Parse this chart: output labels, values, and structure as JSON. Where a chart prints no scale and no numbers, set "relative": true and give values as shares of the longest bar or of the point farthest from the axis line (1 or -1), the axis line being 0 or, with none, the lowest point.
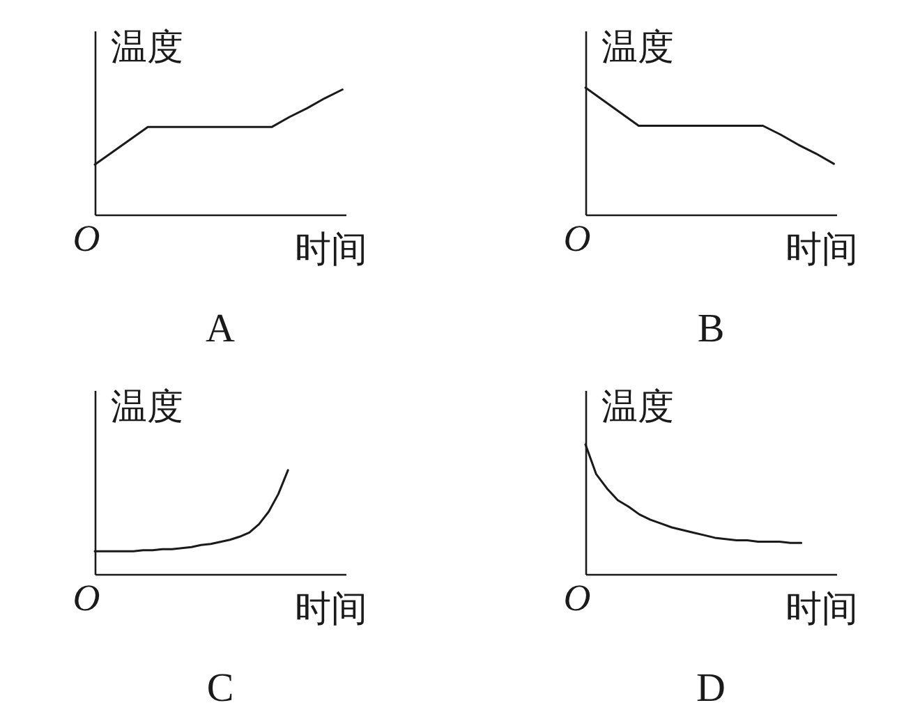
{
  "chart_data": [
    {
      "type": "line",
      "relative": true,
      "title": "A",
      "xlabel": "时间",
      "ylabel": "温度",
      "annotations": [
        "O"
      ],
      "categories": [
        null,
        null,
        null,
        null,
        null,
        null,
        null,
        null,
        null,
        null,
        null,
        null,
        null,
        null,
        null
      ],
      "series": [
        {
          "color": "#1a1a1a",
          "values": [
            0.4,
            0.5,
            0.6,
            0.7,
            0.7,
            0.7,
            0.7,
            0.7,
            0.7,
            0.7,
            0.7,
            0.78,
            0.85,
            0.93,
            1.0
          ]
        }
      ]
    },
    {
      "type": "line",
      "relative": true,
      "title": "B",
      "xlabel": "时间",
      "ylabel": "温度",
      "annotations": [
        "O"
      ],
      "categories": [
        null,
        null,
        null,
        null,
        null,
        null,
        null,
        null,
        null,
        null,
        null,
        null,
        null,
        null,
        null
      ],
      "series": [
        {
          "color": "#1a1a1a",
          "values": [
            1.0,
            0.9,
            0.8,
            0.7,
            0.7,
            0.7,
            0.7,
            0.7,
            0.7,
            0.7,
            0.7,
            0.63,
            0.55,
            0.48,
            0.4
          ]
        }
      ]
    },
    {
      "type": "line",
      "relative": true,
      "title": "C",
      "xlabel": "时间",
      "ylabel": "温度",
      "annotations": [
        "O"
      ],
      "categories": [
        null,
        null,
        null,
        null,
        null,
        null,
        null,
        null,
        null,
        null,
        null,
        null,
        null,
        null,
        null,
        null,
        null,
        null,
        null,
        null,
        null
      ],
      "series": [
        {
          "color": "#1a1a1a",
          "values": [
            0.22,
            0.22,
            0.22,
            0.22,
            0.22,
            0.23,
            0.23,
            0.24,
            0.24,
            0.25,
            0.26,
            0.28,
            0.29,
            0.31,
            0.33,
            0.36,
            0.4,
            0.48,
            0.6,
            0.77,
            1.0
          ]
        }
      ]
    },
    {
      "type": "line",
      "relative": true,
      "title": "D",
      "xlabel": "时间",
      "ylabel": "温度",
      "annotations": [
        "O"
      ],
      "categories": [
        null,
        null,
        null,
        null,
        null,
        null,
        null,
        null,
        null,
        null,
        null,
        null,
        null,
        null,
        null,
        null,
        null,
        null,
        null,
        null,
        null
      ],
      "series": [
        {
          "color": "#1a1a1a",
          "values": [
            1.0,
            0.77,
            0.66,
            0.57,
            0.52,
            0.46,
            0.42,
            0.39,
            0.36,
            0.34,
            0.32,
            0.3,
            0.28,
            0.27,
            0.26,
            0.26,
            0.25,
            0.25,
            0.25,
            0.24,
            0.24
          ]
        }
      ]
    }
  ]
}
